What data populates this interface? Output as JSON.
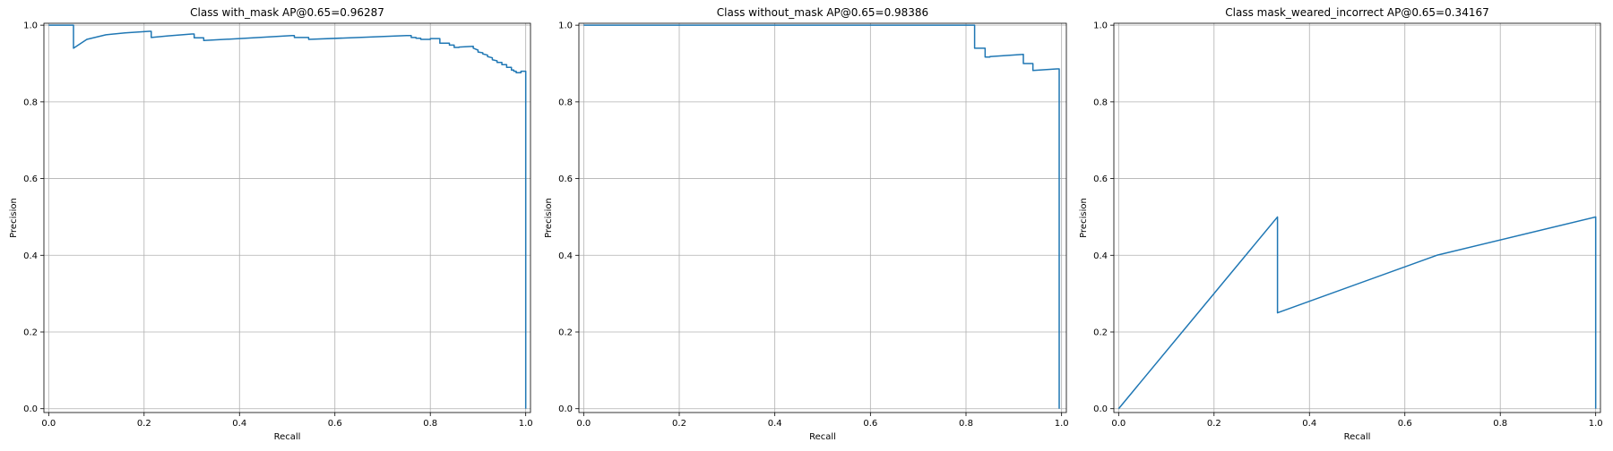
{
  "chart_data": [
    {
      "type": "line",
      "title": "Class with_mask AP@0.65=0.96287",
      "xlabel": "Recall",
      "ylabel": "Precision",
      "xlim": [
        -0.01,
        1.01
      ],
      "ylim": [
        -0.01,
        1.005
      ],
      "xticks": [
        0.0,
        0.2,
        0.4,
        0.6,
        0.8,
        1.0
      ],
      "yticks": [
        0.0,
        0.2,
        0.4,
        0.6,
        0.8,
        1.0
      ],
      "xtick_labels": [
        "0.0",
        "0.2",
        "0.4",
        "0.6",
        "0.8",
        "1.0"
      ],
      "ytick_labels": [
        "0.0",
        "0.2",
        "0.4",
        "0.6",
        "0.8",
        "1.0"
      ],
      "grid": true,
      "line_color": "#1f77b4",
      "x": [
        0.0,
        0.052,
        0.052,
        0.08,
        0.12,
        0.16,
        0.21,
        0.215,
        0.215,
        0.25,
        0.3,
        0.305,
        0.305,
        0.32,
        0.325,
        0.325,
        0.4,
        0.51,
        0.515,
        0.515,
        0.54,
        0.545,
        0.545,
        0.65,
        0.75,
        0.76,
        0.76,
        0.77,
        0.77,
        0.78,
        0.78,
        0.8,
        0.8,
        0.82,
        0.82,
        0.84,
        0.84,
        0.85,
        0.85,
        0.86,
        0.86,
        0.89,
        0.89,
        0.9,
        0.9,
        0.91,
        0.91,
        0.92,
        0.92,
        0.93,
        0.93,
        0.94,
        0.94,
        0.95,
        0.95,
        0.96,
        0.96,
        0.97,
        0.97,
        0.975,
        0.975,
        0.98,
        0.98,
        0.99,
        0.99,
        1.0,
        1.0
      ],
      "y": [
        1.0,
        1.0,
        0.94,
        0.963,
        0.975,
        0.98,
        0.984,
        0.984,
        0.968,
        0.972,
        0.977,
        0.977,
        0.967,
        0.967,
        0.967,
        0.96,
        0.965,
        0.973,
        0.973,
        0.968,
        0.968,
        0.968,
        0.963,
        0.968,
        0.973,
        0.973,
        0.968,
        0.968,
        0.966,
        0.966,
        0.963,
        0.963,
        0.965,
        0.965,
        0.953,
        0.953,
        0.948,
        0.948,
        0.942,
        0.942,
        0.943,
        0.945,
        0.94,
        0.935,
        0.93,
        0.928,
        0.925,
        0.922,
        0.918,
        0.915,
        0.91,
        0.907,
        0.903,
        0.903,
        0.897,
        0.897,
        0.89,
        0.89,
        0.883,
        0.883,
        0.88,
        0.88,
        0.876,
        0.876,
        0.88,
        0.88,
        0.0
      ]
    },
    {
      "type": "line",
      "title": "Class without_mask AP@0.65=0.98386",
      "xlabel": "Recall",
      "ylabel": "Precision",
      "xlim": [
        -0.01,
        1.01
      ],
      "ylim": [
        -0.01,
        1.005
      ],
      "xticks": [
        0.0,
        0.2,
        0.4,
        0.6,
        0.8,
        1.0
      ],
      "yticks": [
        0.0,
        0.2,
        0.4,
        0.6,
        0.8,
        1.0
      ],
      "xtick_labels": [
        "0.0",
        "0.2",
        "0.4",
        "0.6",
        "0.8",
        "1.0"
      ],
      "ytick_labels": [
        "0.0",
        "0.2",
        "0.4",
        "0.6",
        "0.8",
        "1.0"
      ],
      "grid": true,
      "line_color": "#1f77b4",
      "x": [
        0.0,
        0.818,
        0.818,
        0.84,
        0.84,
        0.85,
        0.85,
        0.92,
        0.92,
        0.94,
        0.94,
        0.99,
        0.99,
        0.995,
        0.995
      ],
      "y": [
        1.0,
        1.0,
        0.94,
        0.94,
        0.917,
        0.917,
        0.918,
        0.924,
        0.9,
        0.9,
        0.882,
        0.886,
        0.886,
        0.886,
        0.0
      ]
    },
    {
      "type": "line",
      "title": "Class mask_weared_incorrect AP@0.65=0.34167",
      "xlabel": "Recall",
      "ylabel": "Precision",
      "xlim": [
        -0.01,
        1.01
      ],
      "ylim": [
        -0.01,
        1.005
      ],
      "xticks": [
        0.0,
        0.2,
        0.4,
        0.6,
        0.8,
        1.0
      ],
      "yticks": [
        0.0,
        0.2,
        0.4,
        0.6,
        0.8,
        1.0
      ],
      "xtick_labels": [
        "0.0",
        "0.2",
        "0.4",
        "0.6",
        "0.8",
        "1.0"
      ],
      "ytick_labels": [
        "0.0",
        "0.2",
        "0.4",
        "0.6",
        "0.8",
        "1.0"
      ],
      "grid": true,
      "line_color": "#1f77b4",
      "x": [
        0.0,
        0.333,
        0.333,
        0.667,
        1.0,
        1.0
      ],
      "y": [
        0.0,
        0.5,
        0.25,
        0.4,
        0.5,
        0.0
      ]
    }
  ]
}
